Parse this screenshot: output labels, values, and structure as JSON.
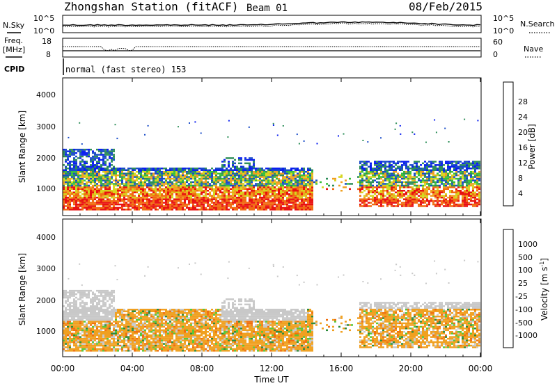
{
  "header": {
    "title": "Zhongshan Station (fitACF)",
    "beam": "Beam 01",
    "date": "08/Feb/2015"
  },
  "aux": {
    "nsky_label": "N.Sky",
    "nsky_ticks": [
      "10^5",
      "10^0"
    ],
    "nsearch_label": "N.Search",
    "nsearch_ticks": [
      "10^5",
      "10^0"
    ],
    "freq_label": "Freq.",
    "freq_unit": "[MHz]",
    "freq_ticks": [
      "18",
      "8"
    ],
    "nave_label": "Nave",
    "nave_ticks": [
      "60",
      "0"
    ],
    "cpid_label": "CPID",
    "cpid_text": "normal (fast stereo) 153"
  },
  "chart_data": [
    {
      "type": "heatmap",
      "name": "power",
      "ylabel": "Slant Range [km]",
      "yticks": [
        "4000",
        "3000",
        "2000",
        "1000"
      ],
      "ylim": [
        180,
        4600
      ],
      "x": [
        "00:00",
        "04:00",
        "08:00",
        "12:00",
        "16:00",
        "20:00",
        "00:00"
      ],
      "xlabel": "Time UT",
      "colorbar_label": "Power [dB]",
      "colorbar_ticks": [
        "28",
        "24",
        "20",
        "16",
        "12",
        "8",
        "4"
      ],
      "colors": [
        "#0a1ef0",
        "#1a4cc8",
        "#2f8f5a",
        "#38c03a",
        "#d6d61e",
        "#f0a020",
        "#f06a10",
        "#e81010"
      ]
    },
    {
      "type": "heatmap",
      "name": "velocity",
      "ylabel": "Slant Range [km]",
      "yticks": [
        "4000",
        "3000",
        "2000",
        "1000"
      ],
      "ylim": [
        180,
        4600
      ],
      "x": [
        "00:00",
        "04:00",
        "08:00",
        "12:00",
        "16:00",
        "20:00",
        "00:00"
      ],
      "xlabel": "Time UT",
      "colorbar_label": "Velocity [m s",
      "colorbar_unit_sup": "-1",
      "colorbar_ticks": [
        "1000",
        "500",
        "100",
        "25",
        "-25",
        "-100",
        "-500",
        "-1000"
      ],
      "colors": [
        "#1a3cc0",
        "#3a78c8",
        "#2e8c3c",
        "#58c83a",
        "#c8c8c8",
        "#f0a020",
        "#f07010",
        "#e81010"
      ]
    }
  ]
}
